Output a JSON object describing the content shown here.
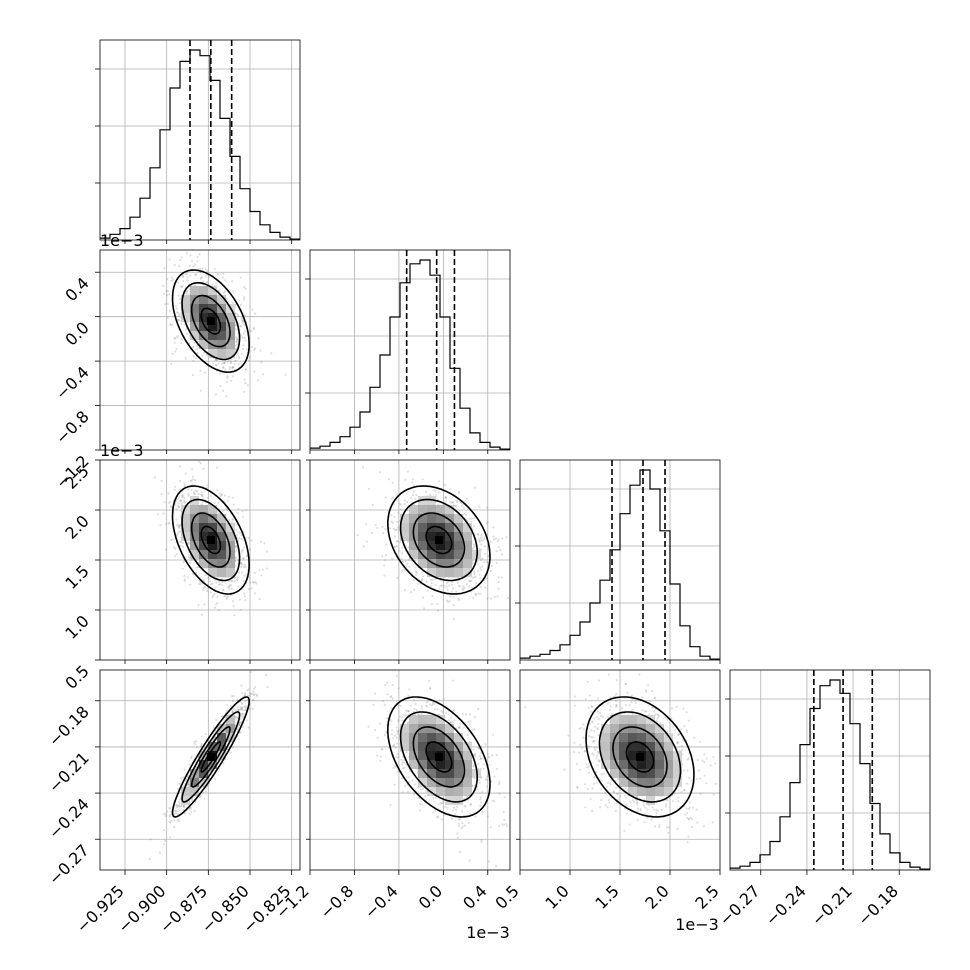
{
  "chart_data": {
    "type": "corner",
    "n_params": 4,
    "params": [
      {
        "index": 0,
        "range": [
          -0.94,
          -0.82
        ],
        "ticks": [
          -0.925,
          -0.9,
          -0.875,
          -0.85,
          -0.825
        ],
        "tick_labels": [
          "−0.925",
          "−0.900",
          "−0.875",
          "−0.850",
          "−0.825"
        ],
        "offset_label": "",
        "quantiles": [
          -0.886,
          -0.8735,
          -0.861
        ],
        "hist": [
          0.01,
          0.03,
          0.06,
          0.12,
          0.22,
          0.38,
          0.58,
          0.8,
          0.94,
          1.0,
          0.97,
          0.84,
          0.64,
          0.44,
          0.27,
          0.15,
          0.08,
          0.04,
          0.015,
          0.005
        ]
      },
      {
        "index": 1,
        "range": [
          -1.2,
          0.6
        ],
        "ticks": [
          -1.2,
          -0.8,
          -0.4,
          0.0,
          0.4
        ],
        "tick_labels": [
          "−1.2",
          "−0.8",
          "−0.4",
          "0.0",
          "0.4"
        ],
        "offset_label": "1e−3",
        "quantiles": [
          -0.33,
          -0.06,
          0.1
        ],
        "hist": [
          0.01,
          0.02,
          0.04,
          0.07,
          0.12,
          0.2,
          0.33,
          0.5,
          0.7,
          0.88,
          0.98,
          1.0,
          0.92,
          0.7,
          0.43,
          0.22,
          0.09,
          0.04,
          0.015,
          0.005
        ]
      },
      {
        "index": 2,
        "range": [
          0.5,
          2.5
        ],
        "ticks": [
          0.5,
          1.0,
          1.5,
          2.0,
          2.5
        ],
        "tick_labels": [
          "0.5",
          "1.0",
          "1.5",
          "2.0",
          "2.5"
        ],
        "offset_label": "1e−3",
        "quantiles": [
          1.42,
          1.73,
          1.95
        ],
        "hist": [
          0.01,
          0.02,
          0.03,
          0.05,
          0.08,
          0.13,
          0.2,
          0.3,
          0.42,
          0.58,
          0.77,
          0.92,
          1.0,
          0.9,
          0.68,
          0.4,
          0.18,
          0.07,
          0.02,
          0.005
        ]
      },
      {
        "index": 3,
        "range": [
          -0.29,
          -0.16
        ],
        "ticks": [
          -0.27,
          -0.24,
          -0.21,
          -0.18
        ],
        "tick_labels": [
          "−0.27",
          "−0.24",
          "−0.21",
          "−0.18"
        ],
        "offset_label": "",
        "quantiles": [
          -0.2355,
          -0.2165,
          -0.1975
        ],
        "hist": [
          0.01,
          0.02,
          0.04,
          0.08,
          0.15,
          0.28,
          0.46,
          0.66,
          0.85,
          0.97,
          1.0,
          0.93,
          0.77,
          0.56,
          0.35,
          0.19,
          0.09,
          0.04,
          0.015,
          0.005
        ]
      }
    ],
    "pairs": [
      {
        "row": 1,
        "col": 0,
        "mean": [
          -0.8735,
          -0.04
        ],
        "sd": [
          0.0115,
          0.23
        ],
        "corr": -0.45
      },
      {
        "row": 2,
        "col": 0,
        "mean": [
          -0.8735,
          1.7
        ],
        "sd": [
          0.0115,
          0.27
        ],
        "corr": -0.45
      },
      {
        "row": 2,
        "col": 1,
        "mean": [
          -0.04,
          1.7
        ],
        "sd": [
          0.23,
          0.27
        ],
        "corr": -0.3
      },
      {
        "row": 3,
        "col": 0,
        "mean": [
          -0.8735,
          -0.2165
        ],
        "sd": [
          0.0115,
          0.0195
        ],
        "corr": 0.93
      },
      {
        "row": 3,
        "col": 1,
        "mean": [
          -0.04,
          -0.2165
        ],
        "sd": [
          0.23,
          0.0195
        ],
        "corr": -0.45
      },
      {
        "row": 3,
        "col": 2,
        "mean": [
          1.7,
          -0.2165
        ],
        "sd": [
          0.27,
          0.0195
        ],
        "corr": -0.3
      }
    ],
    "contour_levels_sigma": [
      0.5,
      1.0,
      1.5,
      2.0
    ],
    "grid": true
  }
}
